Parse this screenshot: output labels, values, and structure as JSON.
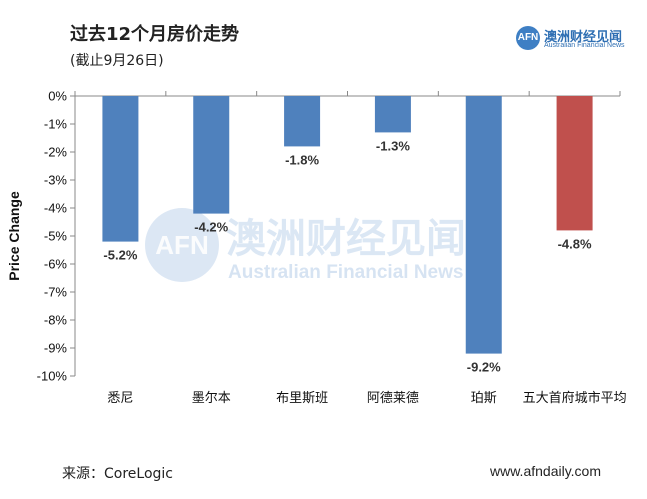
{
  "header": {
    "title": "过去12个月房价走势",
    "subtitle": "(截止9月26日)"
  },
  "logo": {
    "badge": "AFN",
    "cn": "澳洲财经见闻",
    "en": "Australian Financial News"
  },
  "watermark": {
    "badge": "AFN",
    "cn": "澳洲财经见闻",
    "en": "Australian Financial News"
  },
  "footer": {
    "source": "来源：CoreLogic",
    "website": "www.afndaily.com"
  },
  "colors": {
    "bar": "#4f81bd",
    "highlight": "#c0504d",
    "axis": "#888888"
  },
  "chart_data": {
    "type": "bar",
    "title": "过去12个月房价走势",
    "subtitle": "(截止9月26日)",
    "xlabel": "",
    "ylabel": "Price Change",
    "ylim": [
      -10,
      0
    ],
    "yticks": [
      0,
      -1,
      -2,
      -3,
      -4,
      -5,
      -6,
      -7,
      -8,
      -9,
      -10
    ],
    "ytick_labels": [
      "0%",
      "-1%",
      "-2%",
      "-3%",
      "-4%",
      "-5%",
      "-6%",
      "-7%",
      "-8%",
      "-9%",
      "-10%"
    ],
    "categories": [
      "悉尼",
      "墨尔本",
      "布里斯班",
      "阿德莱德",
      "珀斯",
      "五大首府城市平均"
    ],
    "values": [
      -5.2,
      -4.2,
      -1.8,
      -1.3,
      -9.2,
      -4.8
    ],
    "data_labels": [
      "-5.2%",
      "-4.2%",
      "-1.8%",
      "-1.3%",
      "-9.2%",
      "-4.8%"
    ],
    "highlight_index": 5,
    "grid": false,
    "legend": "none"
  }
}
